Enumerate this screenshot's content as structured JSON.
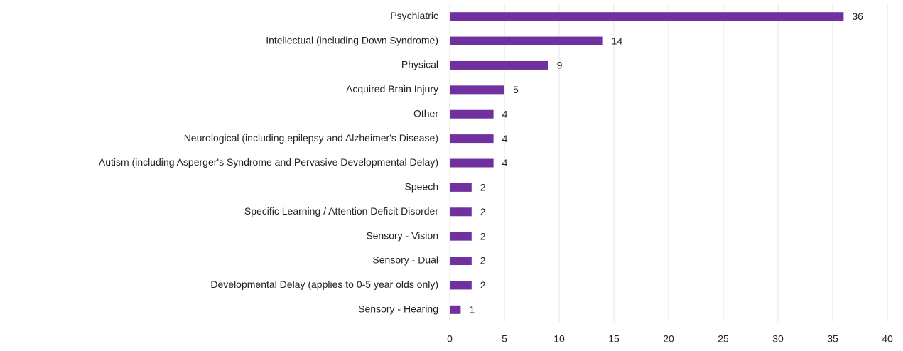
{
  "chart_data": {
    "type": "bar",
    "orientation": "horizontal",
    "categories": [
      "Psychiatric",
      "Intellectual (including Down Syndrome)",
      "Physical",
      "Acquired Brain Injury",
      "Other",
      "Neurological (including epilepsy and Alzheimer's Disease)",
      "Autism (including Asperger's Syndrome and Pervasive Developmental Delay)",
      "Speech",
      "Specific Learning / Attention Deficit Disorder",
      "Sensory - Vision",
      "Sensory - Dual",
      "Developmental Delay (applies to 0-5 year olds only)",
      "Sensory - Hearing"
    ],
    "values": [
      36,
      14,
      9,
      5,
      4,
      4,
      4,
      2,
      2,
      2,
      2,
      2,
      1
    ],
    "color": "#7030a0",
    "xlim": [
      0,
      40
    ],
    "xticks": [
      0,
      5,
      10,
      15,
      20,
      25,
      30,
      35,
      40
    ],
    "grid": true
  }
}
